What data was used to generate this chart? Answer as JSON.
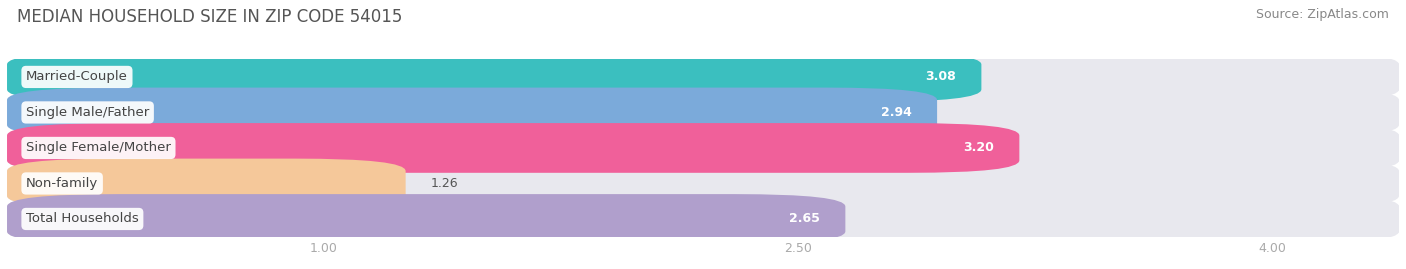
{
  "title": "MEDIAN HOUSEHOLD SIZE IN ZIP CODE 54015",
  "source": "Source: ZipAtlas.com",
  "categories": [
    "Married-Couple",
    "Single Male/Father",
    "Single Female/Mother",
    "Non-family",
    "Total Households"
  ],
  "values": [
    3.08,
    2.94,
    3.2,
    1.26,
    2.65
  ],
  "bar_colors": [
    "#3bbfbf",
    "#7baada",
    "#f0609a",
    "#f5c89a",
    "#b09fcc"
  ],
  "xticks": [
    1.0,
    2.5,
    4.0
  ],
  "xtick_labels": [
    "1.00",
    "2.50",
    "4.00"
  ],
  "xmin": 0.0,
  "xmax": 4.4,
  "bar_xstart": 0.0,
  "title_fontsize": 12,
  "source_fontsize": 9,
  "label_fontsize": 9.5,
  "value_fontsize": 9,
  "background_color": "#ffffff",
  "row_bg_color": "#f0f0f5",
  "bar_bg_color": "#e8e8ee"
}
